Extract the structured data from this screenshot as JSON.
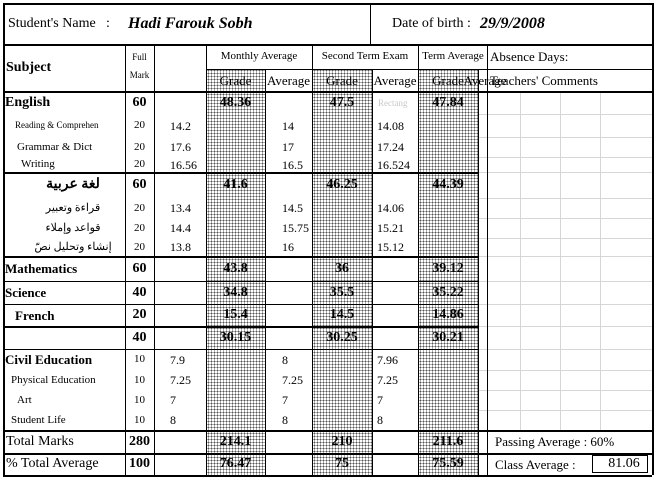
{
  "header": {
    "name_label": "Student's Name",
    "name_colon": ":",
    "name_value": "Hadi Farouk Sobh",
    "dob_label": "Date of birth :",
    "dob_value": "29/9/2008"
  },
  "columns": {
    "subject": "Subject",
    "full_mark_1": "Full",
    "full_mark_2": "Mark",
    "monthly": "Monthly Average",
    "second_term": "Second Term Exam",
    "term": "Term Average",
    "grade": "Grade",
    "average": "Average",
    "absence": "Absence Days:",
    "comments": "Teachers' Comments"
  },
  "ghost_text": "Rectang",
  "rows": [
    {
      "subject": "English",
      "full": "60",
      "m_avg": "48.36",
      "s_avg": "47.5",
      "t_avg": "47.84"
    },
    {
      "subject": "Reading  &  Comprehen",
      "full": "20",
      "m_grade": "14.2",
      "s_grade": "14",
      "t_grade": "14.08"
    },
    {
      "subject": "Grammar & Dict",
      "full": "20",
      "m_grade": "17.6",
      "s_grade": "17",
      "t_grade": "17.24"
    },
    {
      "subject": "Writing",
      "full": "20",
      "m_grade": "16.56",
      "s_grade": "16.5",
      "t_grade": "16.524"
    },
    {
      "subject": "لغة عربية",
      "full": "60",
      "m_avg": "41.6",
      "s_avg": "46.25",
      "t_avg": "44.39"
    },
    {
      "subject": "قراءة وتعبير",
      "full": "20",
      "m_grade": "13.4",
      "s_grade": "14.5",
      "t_grade": "14.06"
    },
    {
      "subject": "قواعد وإملاء",
      "full": "20",
      "m_grade": "14.4",
      "s_grade": "15.75",
      "t_grade": "15.21"
    },
    {
      "subject": "إنشاء وتحليل نصّ",
      "full": "20",
      "m_grade": "13.8",
      "s_grade": "16",
      "t_grade": "15.12"
    },
    {
      "subject": "Mathematics",
      "full": "60",
      "m_avg": "43.8",
      "s_avg": "36",
      "t_avg": "39.12"
    },
    {
      "subject": "Science",
      "full": "40",
      "m_avg": "34.8",
      "s_avg": "35.5",
      "t_avg": "35.22"
    },
    {
      "subject": "French",
      "full": "20",
      "m_avg": "15.4",
      "s_avg": "14.5",
      "t_avg": "14.86"
    },
    {
      "subject": "",
      "full": "40",
      "m_avg": "30.15",
      "s_avg": "30.25",
      "t_avg": "30.21"
    },
    {
      "subject": "Civil Education",
      "full": "10",
      "m_grade": "7.9",
      "s_grade": "8",
      "t_grade": "7.96"
    },
    {
      "subject": "Physical Education",
      "full": "10",
      "m_grade": "7.25",
      "s_grade": "7.25",
      "t_grade": "7.25"
    },
    {
      "subject": "Art",
      "full": "10",
      "m_grade": "7",
      "s_grade": "7",
      "t_grade": "7"
    },
    {
      "subject": "Student Life",
      "full": "10",
      "m_grade": "8",
      "s_grade": "8",
      "t_grade": "8"
    }
  ],
  "totals": [
    {
      "label": "Total Marks",
      "full": "280",
      "m_avg": "214.1",
      "s_avg": "210",
      "t_avg": "211.6",
      "extra_label": "Passing Average : 60%",
      "extra_value": ""
    },
    {
      "label": "% Total Average",
      "full": "100",
      "m_avg": "76.47",
      "s_avg": "75",
      "t_avg": "75.59",
      "extra_label": "Class Average :",
      "extra_value": "81.06"
    }
  ]
}
